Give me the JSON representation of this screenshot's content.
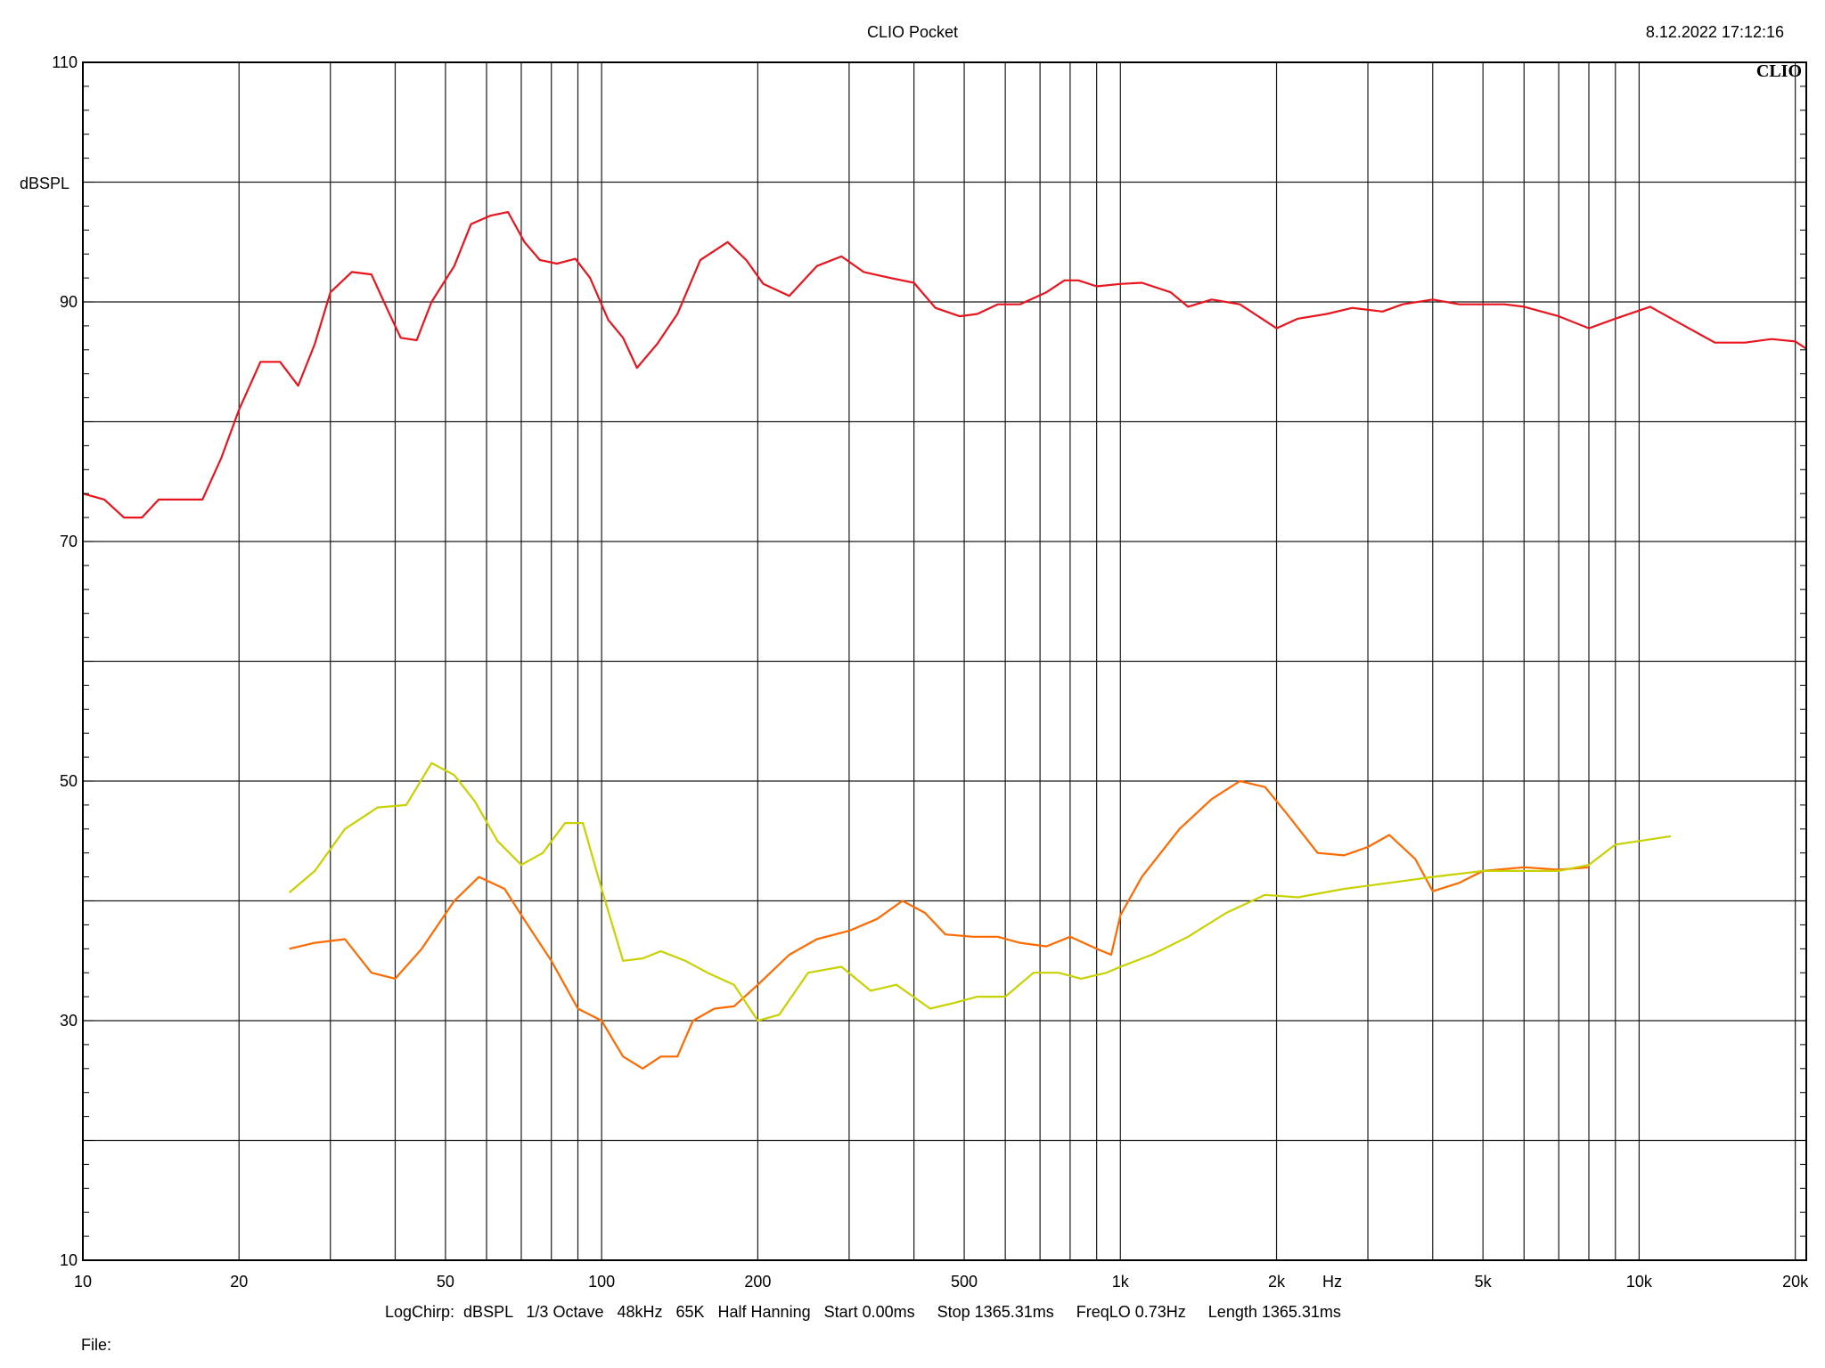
{
  "header": {
    "title": "CLIO Pocket",
    "timestamp": "8.12.2022 17:12:16",
    "brand": "CLIO"
  },
  "footer": {
    "params": "LogChirp:  dBSPL   1/3 Octave   48kHz   65K   Half Hanning   Start 0.00ms     Stop 1365.31ms     FreqLO 0.73Hz     Length 1365.31ms",
    "file_label": "File:"
  },
  "chart_data": {
    "type": "line",
    "title": "CLIO Pocket",
    "xlabel": "Hz",
    "ylabel": "dBSPL",
    "xscale": "log",
    "xlim": [
      10,
      21000
    ],
    "ylim": [
      10,
      110
    ],
    "grid": true,
    "x_tick_labels": [
      {
        "value": 10,
        "label": "10"
      },
      {
        "value": 20,
        "label": "20"
      },
      {
        "value": 50,
        "label": "50"
      },
      {
        "value": 100,
        "label": "100"
      },
      {
        "value": 200,
        "label": "200"
      },
      {
        "value": 500,
        "label": "500"
      },
      {
        "value": 1000,
        "label": "1k"
      },
      {
        "value": 2000,
        "label": "2k"
      },
      {
        "value": 5000,
        "label": "5k"
      },
      {
        "value": 10000,
        "label": "10k"
      },
      {
        "value": 20000,
        "label": "20k"
      }
    ],
    "y_tick_labels": [
      {
        "value": 10,
        "label": "10"
      },
      {
        "value": 30,
        "label": "30"
      },
      {
        "value": 50,
        "label": "50"
      },
      {
        "value": 70,
        "label": "70"
      },
      {
        "value": 90,
        "label": "90"
      },
      {
        "value": 110,
        "label": "110"
      }
    ],
    "series": [
      {
        "color": "#e8141e",
        "points": [
          [
            10,
            74
          ],
          [
            11,
            73.5
          ],
          [
            12,
            72
          ],
          [
            13,
            72
          ],
          [
            14,
            73.5
          ],
          [
            15.5,
            73.5
          ],
          [
            17,
            73.5
          ],
          [
            18.5,
            77
          ],
          [
            20,
            81
          ],
          [
            22,
            85
          ],
          [
            24,
            85
          ],
          [
            26,
            83
          ],
          [
            28,
            86.5
          ],
          [
            30,
            90.8
          ],
          [
            33,
            92.5
          ],
          [
            36,
            92.3
          ],
          [
            39,
            89
          ],
          [
            41,
            87
          ],
          [
            44,
            86.8
          ],
          [
            47,
            90
          ],
          [
            52,
            93
          ],
          [
            56,
            96.5
          ],
          [
            61,
            97.2
          ],
          [
            66,
            97.5
          ],
          [
            71,
            95
          ],
          [
            76,
            93.5
          ],
          [
            82,
            93.2
          ],
          [
            89,
            93.6
          ],
          [
            95,
            92
          ],
          [
            103,
            88.5
          ],
          [
            110,
            87
          ],
          [
            117,
            84.5
          ],
          [
            128,
            86.5
          ],
          [
            140,
            89
          ],
          [
            155,
            93.5
          ],
          [
            175,
            95
          ],
          [
            190,
            93.5
          ],
          [
            205,
            91.5
          ],
          [
            230,
            90.5
          ],
          [
            260,
            93
          ],
          [
            290,
            93.8
          ],
          [
            320,
            92.5
          ],
          [
            360,
            92
          ],
          [
            400,
            91.6
          ],
          [
            440,
            89.5
          ],
          [
            490,
            88.8
          ],
          [
            530,
            89
          ],
          [
            580,
            89.8
          ],
          [
            640,
            89.8
          ],
          [
            720,
            90.8
          ],
          [
            780,
            91.8
          ],
          [
            830,
            91.8
          ],
          [
            900,
            91.3
          ],
          [
            1000,
            91.5
          ],
          [
            1100,
            91.6
          ],
          [
            1250,
            90.8
          ],
          [
            1350,
            89.6
          ],
          [
            1500,
            90.2
          ],
          [
            1700,
            89.8
          ],
          [
            2000,
            87.8
          ],
          [
            2200,
            88.6
          ],
          [
            2500,
            89
          ],
          [
            2800,
            89.5
          ],
          [
            3200,
            89.2
          ],
          [
            3500,
            89.8
          ],
          [
            4000,
            90.2
          ],
          [
            4500,
            89.8
          ],
          [
            5000,
            89.8
          ],
          [
            5500,
            89.8
          ],
          [
            6000,
            89.6
          ],
          [
            7000,
            88.8
          ],
          [
            8000,
            87.8
          ],
          [
            9000,
            88.6
          ],
          [
            10500,
            89.6
          ],
          [
            12000,
            88.2
          ],
          [
            14000,
            86.6
          ],
          [
            16000,
            86.6
          ],
          [
            18000,
            86.9
          ],
          [
            20000,
            86.7
          ],
          [
            21000,
            86.1
          ]
        ]
      },
      {
        "color": "#ff6a00",
        "points": [
          [
            25,
            36
          ],
          [
            28,
            36.5
          ],
          [
            32,
            36.8
          ],
          [
            36,
            34
          ],
          [
            40,
            33.5
          ],
          [
            45,
            36
          ],
          [
            52,
            40
          ],
          [
            58,
            42
          ],
          [
            65,
            41
          ],
          [
            72,
            38
          ],
          [
            80,
            35
          ],
          [
            90,
            31
          ],
          [
            100,
            30
          ],
          [
            110,
            27
          ],
          [
            120,
            26
          ],
          [
            130,
            27
          ],
          [
            140,
            27
          ],
          [
            150,
            30
          ],
          [
            165,
            31
          ],
          [
            180,
            31.2
          ],
          [
            200,
            33
          ],
          [
            230,
            35.5
          ],
          [
            260,
            36.8
          ],
          [
            300,
            37.5
          ],
          [
            340,
            38.5
          ],
          [
            380,
            40
          ],
          [
            420,
            39
          ],
          [
            460,
            37.2
          ],
          [
            520,
            37
          ],
          [
            580,
            37
          ],
          [
            640,
            36.5
          ],
          [
            720,
            36.2
          ],
          [
            800,
            37
          ],
          [
            900,
            36
          ],
          [
            960,
            35.5
          ],
          [
            1000,
            38.8
          ],
          [
            1100,
            42
          ],
          [
            1300,
            46
          ],
          [
            1500,
            48.5
          ],
          [
            1700,
            50
          ],
          [
            1900,
            49.5
          ],
          [
            2100,
            47.2
          ],
          [
            2400,
            44
          ],
          [
            2700,
            43.8
          ],
          [
            3000,
            44.5
          ],
          [
            3300,
            45.5
          ],
          [
            3700,
            43.5
          ],
          [
            4000,
            40.8
          ],
          [
            4500,
            41.5
          ],
          [
            5000,
            42.5
          ],
          [
            6000,
            42.8
          ],
          [
            7000,
            42.6
          ],
          [
            8000,
            42.8
          ]
        ]
      },
      {
        "color": "#c8d200",
        "points": [
          [
            25,
            40.7
          ],
          [
            28,
            42.5
          ],
          [
            32,
            46
          ],
          [
            37,
            47.8
          ],
          [
            42,
            48
          ],
          [
            47,
            51.5
          ],
          [
            52,
            50.5
          ],
          [
            57,
            48.3
          ],
          [
            63,
            45
          ],
          [
            70,
            43
          ],
          [
            77,
            44
          ],
          [
            85,
            46.5
          ],
          [
            92,
            46.5
          ],
          [
            100,
            41
          ],
          [
            110,
            35
          ],
          [
            120,
            35.2
          ],
          [
            130,
            35.8
          ],
          [
            145,
            35
          ],
          [
            160,
            34
          ],
          [
            180,
            33
          ],
          [
            200,
            30
          ],
          [
            220,
            30.5
          ],
          [
            250,
            34
          ],
          [
            290,
            34.5
          ],
          [
            330,
            32.5
          ],
          [
            370,
            33
          ],
          [
            430,
            31
          ],
          [
            480,
            31.5
          ],
          [
            530,
            32
          ],
          [
            600,
            32
          ],
          [
            680,
            34
          ],
          [
            760,
            34
          ],
          [
            840,
            33.5
          ],
          [
            940,
            34
          ],
          [
            1000,
            34.5
          ],
          [
            1150,
            35.5
          ],
          [
            1350,
            37
          ],
          [
            1600,
            39
          ],
          [
            1900,
            40.5
          ],
          [
            2200,
            40.3
          ],
          [
            2700,
            41
          ],
          [
            3300,
            41.5
          ],
          [
            4000,
            42
          ],
          [
            5000,
            42.5
          ],
          [
            6000,
            42.5
          ],
          [
            7000,
            42.5
          ],
          [
            8000,
            43
          ],
          [
            9000,
            44.7
          ],
          [
            10000,
            45
          ],
          [
            11500,
            45.4
          ]
        ]
      }
    ]
  }
}
